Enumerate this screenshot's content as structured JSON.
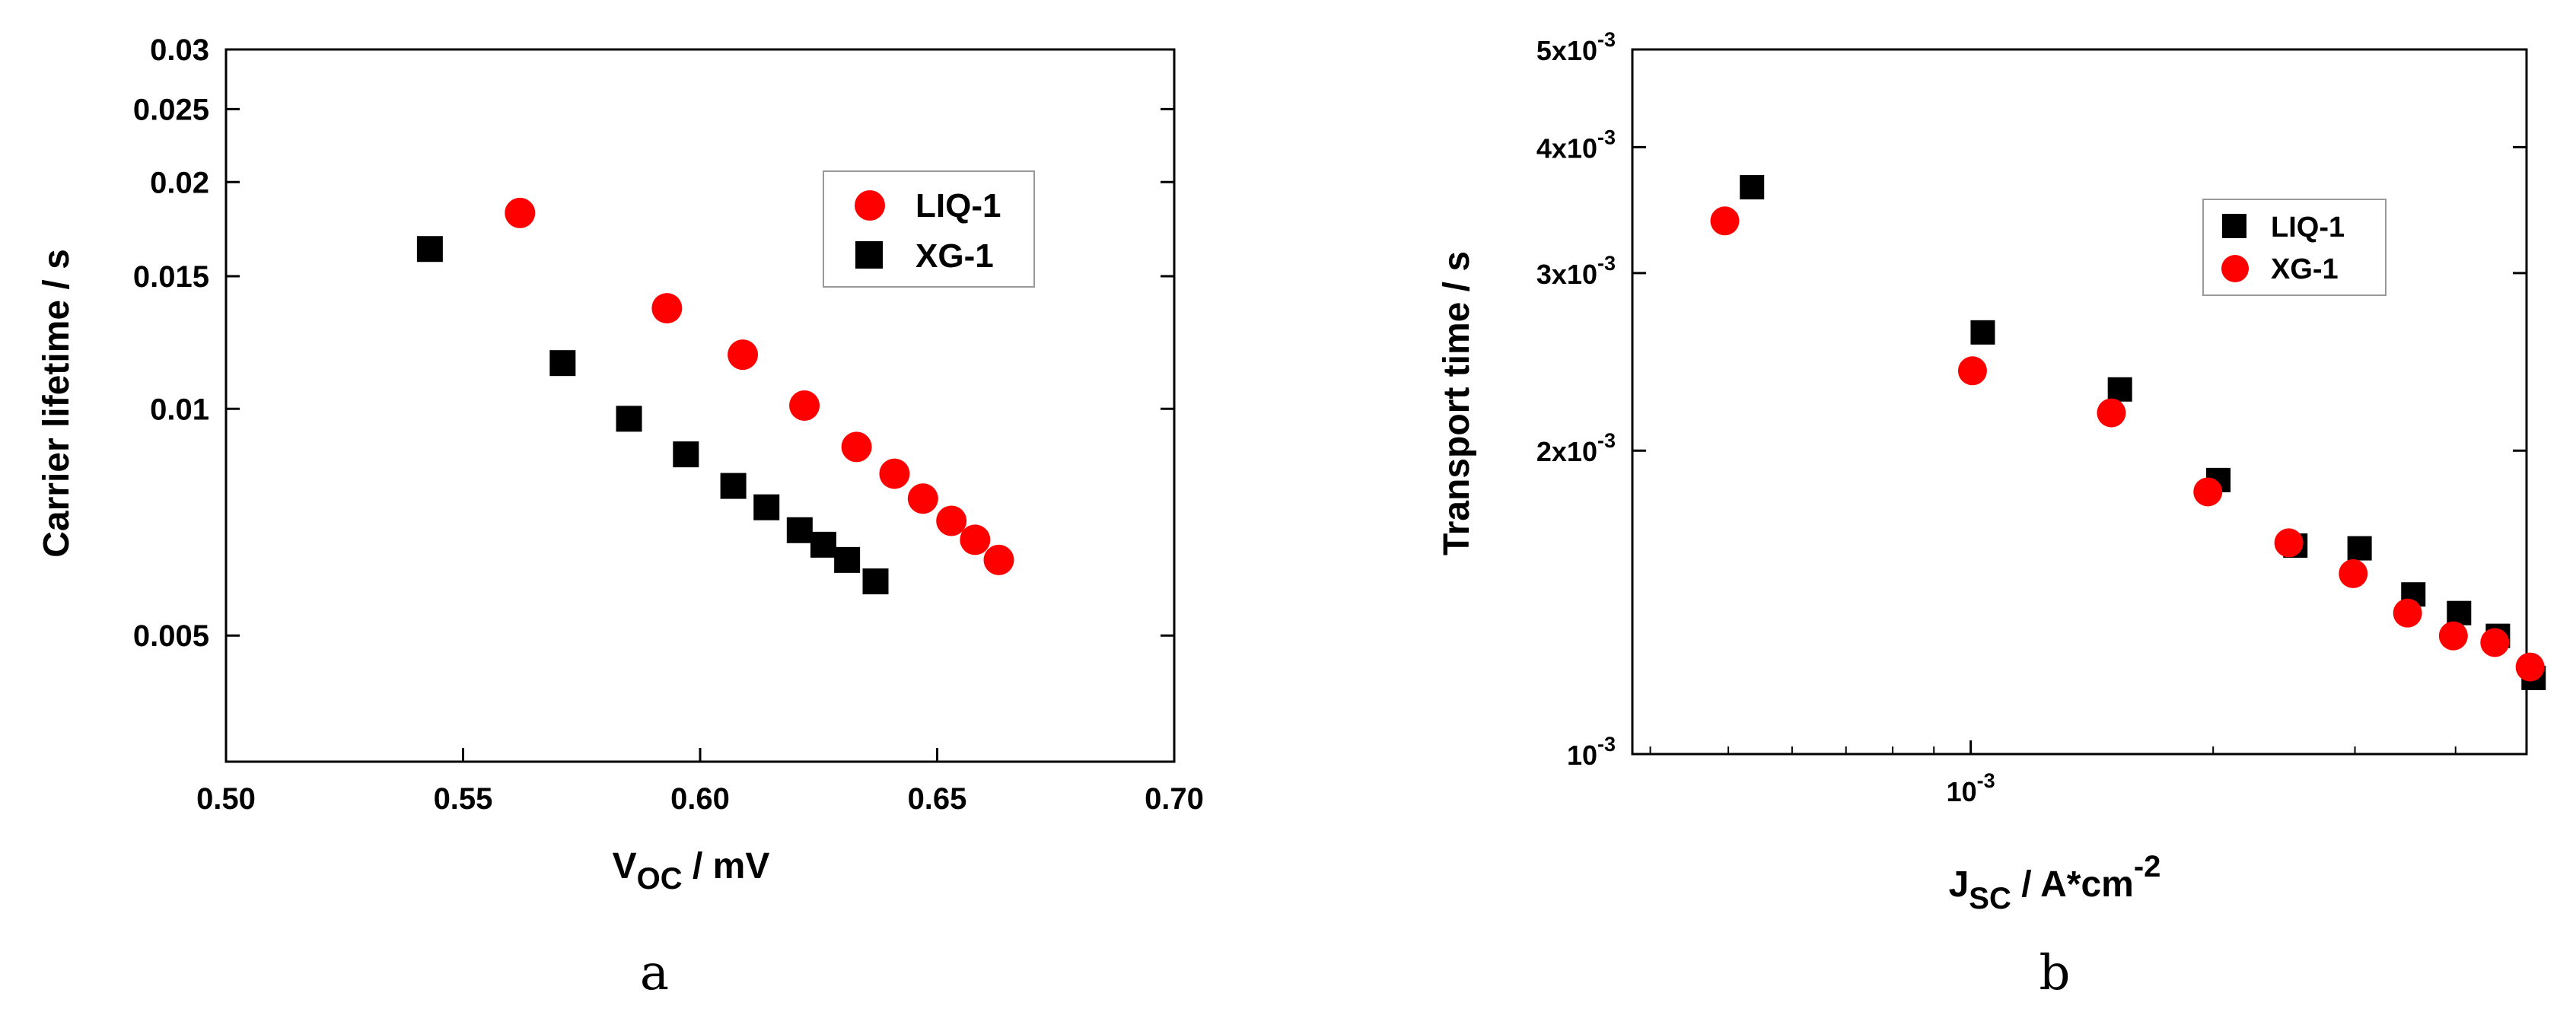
{
  "chart_data": [
    {
      "type": "scatter",
      "panel_label": "a",
      "xscale": "linear",
      "yscale": "log",
      "xlim": [
        0.5,
        0.7
      ],
      "ylim": [
        0.0034,
        0.03
      ],
      "xticks": [
        {
          "value": 0.5,
          "label": "0.50"
        },
        {
          "value": 0.55,
          "label": "0.55"
        },
        {
          "value": 0.6,
          "label": "0.60"
        },
        {
          "value": 0.65,
          "label": "0.65"
        },
        {
          "value": 0.7,
          "label": "0.70"
        }
      ],
      "yticks": [
        {
          "value": 0.005,
          "label": "0.005"
        },
        {
          "value": 0.01,
          "label": "0.01"
        },
        {
          "value": 0.015,
          "label": "0.015"
        },
        {
          "value": 0.02,
          "label": "0.02"
        },
        {
          "value": 0.025,
          "label": "0.025"
        },
        {
          "value": 0.03,
          "label": "0.03"
        }
      ],
      "xlabel": {
        "main": "V",
        "sub": "OC",
        "rest": " / mV"
      },
      "ylabel": "Carrier lifetime / s",
      "legend_position": "top-right",
      "series": [
        {
          "name": "LIQ-1",
          "marker": "circle",
          "color": "#ff0000",
          "x": [
            0.562,
            0.593,
            0.609,
            0.622,
            0.633,
            0.641,
            0.647,
            0.653,
            0.658,
            0.663
          ],
          "y": [
            0.0182,
            0.0136,
            0.0118,
            0.0101,
            0.0089,
            0.0082,
            0.0076,
            0.0071,
            0.0067,
            0.0063
          ]
        },
        {
          "name": "XG-1",
          "marker": "square",
          "color": "#000000",
          "x": [
            0.543,
            0.571,
            0.585,
            0.597,
            0.607,
            0.614,
            0.621,
            0.626,
            0.631,
            0.637
          ],
          "y": [
            0.0163,
            0.0115,
            0.0097,
            0.0087,
            0.0079,
            0.0074,
            0.0069,
            0.0066,
            0.0063,
            0.0059
          ]
        }
      ]
    },
    {
      "type": "scatter",
      "panel_label": "b",
      "xscale": "log",
      "yscale": "log",
      "xlim": [
        0.00038,
        0.0049
      ],
      "ylim": [
        0.001,
        0.005
      ],
      "xticks": [
        {
          "value": 0.001,
          "base": "10",
          "exp": "-3"
        }
      ],
      "yticks": [
        {
          "value": 0.001,
          "base": "10",
          "exp": "-3"
        },
        {
          "value": 0.002,
          "base": "2x10",
          "exp": "-3"
        },
        {
          "value": 0.003,
          "base": "3x10",
          "exp": "-3"
        },
        {
          "value": 0.004,
          "base": "4x10",
          "exp": "-3"
        },
        {
          "value": 0.005,
          "base": "5x10",
          "exp": "-3"
        }
      ],
      "xlabel": {
        "main": "J",
        "sub": "SC",
        "rest": " / A*cm",
        "sup": "-2"
      },
      "ylabel": "Transport time / s",
      "legend_position": "top-right",
      "series": [
        {
          "name": "LIQ-1",
          "marker": "square",
          "color": "#000000",
          "x": [
            0.000535,
            0.001035,
            0.001532,
            0.00203,
            0.00253,
            0.00304,
            0.003545,
            0.00404,
            0.004515,
            0.005
          ],
          "y": [
            0.00365,
            0.00262,
            0.0023,
            0.00187,
            0.00161,
            0.0016,
            0.00144,
            0.00138,
            0.00131,
            0.00119
          ]
        },
        {
          "name": "XG-1",
          "marker": "circle",
          "color": "#ff0000",
          "x": [
            0.000495,
            0.001005,
            0.001495,
            0.00197,
            0.002483,
            0.002985,
            0.003487,
            0.003975,
            0.004475,
            0.00495
          ],
          "y": [
            0.00338,
            0.0024,
            0.00218,
            0.00182,
            0.00162,
            0.00151,
            0.00138,
            0.00131,
            0.00129,
            0.00122
          ]
        }
      ]
    }
  ]
}
